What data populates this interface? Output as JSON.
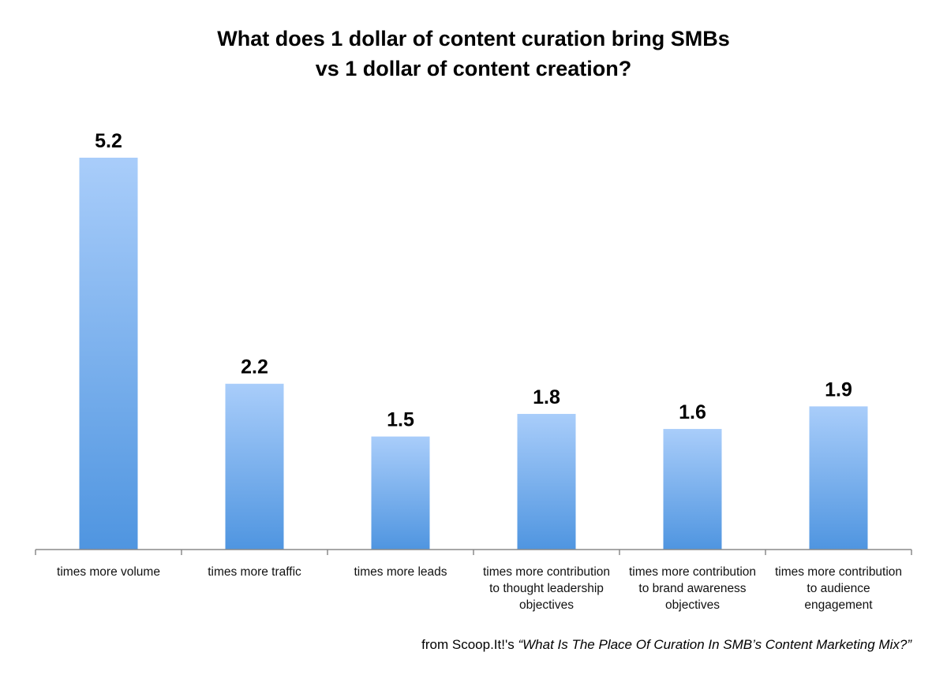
{
  "chart_data": {
    "type": "bar",
    "title": [
      "What does 1 dollar of content curation bring SMBs",
      "vs 1 dollar of content creation?"
    ],
    "categories": [
      [
        "times more volume"
      ],
      [
        "times more traffic"
      ],
      [
        "times more leads"
      ],
      [
        "times more contribution",
        "to thought leadership",
        "objectives"
      ],
      [
        "times more contribution",
        "to brand awareness",
        "objectives"
      ],
      [
        "times more contribution",
        "to audience",
        "engagement"
      ]
    ],
    "values": [
      5.2,
      2.2,
      1.5,
      1.8,
      1.6,
      1.9
    ],
    "value_labels": [
      "5.2",
      "2.2",
      "1.5",
      "1.8",
      "1.6",
      "1.9"
    ],
    "xlabel": "",
    "ylabel": "",
    "ylim": [
      0,
      5.2
    ],
    "grid": false,
    "colors": {
      "bar_top": "#a9cdfa",
      "bar_bottom": "#4f95e0",
      "axis": "#8a8a8a"
    }
  },
  "source": {
    "prefix": "from Scoop.It!'s ",
    "title": "“What Is The Place Of Curation In SMB’s Content Marketing Mix?”"
  }
}
